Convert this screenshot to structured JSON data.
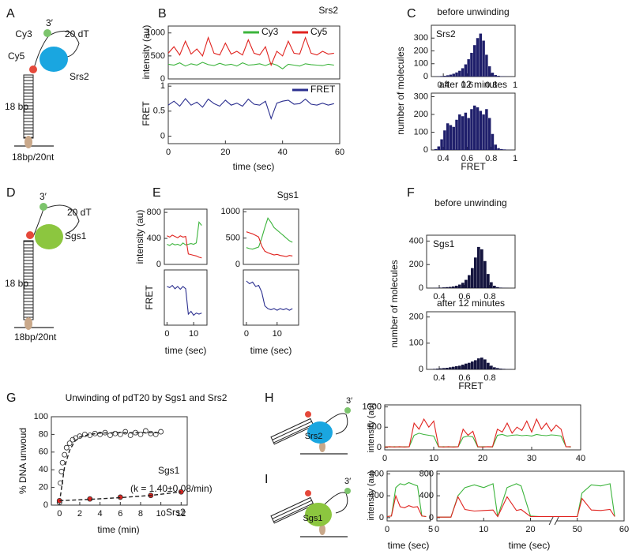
{
  "figure": {
    "panels": [
      "A",
      "B",
      "C",
      "D",
      "E",
      "F",
      "G",
      "H",
      "I"
    ],
    "diagrams": {
      "A": {
        "end": "3′",
        "dye3": "Cy3",
        "tail": "20 dT",
        "dye5": "Cy5",
        "protein": "Srs2",
        "duplex": "18 bp",
        "substrate": "18bp/20nt"
      },
      "D": {
        "end": "3′",
        "tail": "20 dT",
        "protein": "Sgs1",
        "duplex": "18 bp",
        "substrate": "18bp/20nt"
      },
      "H": {
        "end": "3′",
        "protein": "Srs2"
      },
      "I": {
        "end": "3′",
        "protein": "Sgs1"
      }
    }
  },
  "chart_data": [
    {
      "type": "line",
      "title": "Srs2",
      "y_label": "intensity (au)",
      "legend": "upper right",
      "x": [
        0,
        2,
        4,
        6,
        8,
        10,
        12,
        14,
        16,
        18,
        20,
        22,
        24,
        26,
        28,
        30,
        32,
        34,
        36,
        38,
        40,
        42,
        44,
        46,
        48,
        50,
        52,
        54,
        56,
        58
      ],
      "xlim": [
        0,
        60
      ],
      "ylim": [
        0,
        1150
      ],
      "yticks": [
        0,
        500,
        1000
      ],
      "series": [
        {
          "name": "Cy3",
          "color": "#3cb43c",
          "values": [
            320,
            300,
            350,
            280,
            330,
            300,
            360,
            310,
            290,
            340,
            300,
            320,
            280,
            350,
            300,
            310,
            330,
            290,
            340,
            300,
            220,
            320,
            300,
            280,
            330,
            310,
            300,
            290,
            320,
            300
          ]
        },
        {
          "name": "Cy5",
          "color": "#e0231f",
          "values": [
            560,
            700,
            520,
            820,
            540,
            650,
            500,
            900,
            560,
            520,
            780,
            540,
            600,
            520,
            850,
            560,
            520,
            700,
            300,
            600,
            500,
            820,
            560,
            540,
            900,
            560,
            520,
            600,
            540,
            560
          ]
        }
      ]
    },
    {
      "type": "line",
      "y_label": "FRET",
      "x_label": "time (sec)",
      "legend": "upper right",
      "x": [
        0,
        2,
        4,
        6,
        8,
        10,
        12,
        14,
        16,
        18,
        20,
        22,
        24,
        26,
        28,
        30,
        32,
        34,
        36,
        38,
        40,
        42,
        44,
        46,
        48,
        50,
        52,
        54,
        56,
        58
      ],
      "xlim": [
        0,
        60
      ],
      "xticks": [
        0,
        20,
        40,
        60
      ],
      "ylim": [
        -0.15,
        1.05
      ],
      "yticks": [
        0,
        0.5,
        1
      ],
      "series": [
        {
          "name": "FRET",
          "color": "#2b2f8f",
          "values": [
            0.62,
            0.7,
            0.6,
            0.75,
            0.62,
            0.68,
            0.58,
            0.74,
            0.65,
            0.6,
            0.72,
            0.62,
            0.66,
            0.6,
            0.74,
            0.64,
            0.62,
            0.7,
            0.35,
            0.66,
            0.7,
            0.72,
            0.64,
            0.65,
            0.74,
            0.64,
            0.62,
            0.66,
            0.62,
            0.65
          ]
        }
      ]
    },
    {
      "type": "histogram",
      "title": "before unwinding",
      "annotations": [
        "Srs2"
      ],
      "y_label": "number of molecules",
      "color": "#1f1f6b",
      "bins": [
        0.3,
        0.325,
        0.35,
        0.375,
        0.4,
        0.425,
        0.45,
        0.475,
        0.5,
        0.525,
        0.55,
        0.575,
        0.6,
        0.625,
        0.65,
        0.675,
        0.7,
        0.725,
        0.75,
        0.775,
        0.8,
        0.825,
        0.85,
        0.875,
        0.9,
        0.925,
        0.95,
        0.975,
        1
      ],
      "values": [
        0,
        1,
        2,
        4,
        6,
        10,
        15,
        22,
        32,
        45,
        65,
        95,
        135,
        185,
        245,
        300,
        335,
        280,
        170,
        80,
        30,
        12,
        6,
        3,
        2,
        1,
        1,
        0
      ],
      "xlim": [
        0.3,
        1
      ],
      "xticks": [
        0.4,
        0.6,
        0.8,
        1
      ],
      "ylim": [
        0,
        400
      ],
      "yticks": [
        0,
        100,
        200,
        300
      ]
    },
    {
      "type": "histogram",
      "title": "after 12 minutes",
      "x_label": "FRET",
      "color": "#1f1f6b",
      "bins": [
        0.3,
        0.325,
        0.35,
        0.375,
        0.4,
        0.425,
        0.45,
        0.475,
        0.5,
        0.525,
        0.55,
        0.575,
        0.6,
        0.625,
        0.65,
        0.675,
        0.7,
        0.725,
        0.75,
        0.775,
        0.8,
        0.825,
        0.85,
        0.875,
        0.9,
        0.925,
        0.95,
        0.975,
        1
      ],
      "values": [
        0,
        5,
        20,
        60,
        110,
        150,
        140,
        130,
        170,
        200,
        190,
        210,
        180,
        230,
        250,
        240,
        220,
        200,
        230,
        180,
        90,
        30,
        10,
        5,
        3,
        1,
        1,
        0
      ],
      "xlim": [
        0.3,
        1
      ],
      "xticks": [
        0.4,
        0.6,
        0.8,
        1
      ],
      "ylim": [
        0,
        320
      ],
      "yticks": [
        0,
        100,
        200,
        300
      ]
    },
    {
      "type": "line",
      "y_label": "intensity (au)",
      "x": [
        0,
        1,
        2,
        3,
        4,
        5,
        6,
        7,
        8,
        9,
        10,
        11,
        12,
        13
      ],
      "xlim": [
        -1,
        15
      ],
      "ylim": [
        0,
        850
      ],
      "yticks": [
        0,
        400,
        800
      ],
      "series": [
        {
          "color": "#3cb43c",
          "values": [
            310,
            290,
            320,
            300,
            310,
            290,
            330,
            300,
            310,
            320,
            310,
            330,
            650,
            600
          ]
        },
        {
          "color": "#e0231f",
          "values": [
            440,
            420,
            450,
            430,
            410,
            440,
            420,
            430,
            160,
            150,
            140,
            130,
            110,
            100
          ]
        }
      ]
    },
    {
      "type": "line",
      "title": "Sgs1",
      "x": [
        0,
        1,
        2,
        3,
        4,
        5,
        6,
        7,
        8,
        9,
        10,
        11,
        12,
        13,
        14,
        15
      ],
      "xlim": [
        -1,
        17
      ],
      "ylim": [
        0,
        1050
      ],
      "yticks": [
        0,
        500,
        1000
      ],
      "series": [
        {
          "color": "#3cb43c",
          "values": [
            320,
            300,
            290,
            310,
            330,
            500,
            700,
            880,
            800,
            700,
            650,
            600,
            550,
            500,
            450,
            420
          ]
        },
        {
          "color": "#e0231f",
          "values": [
            620,
            600,
            580,
            550,
            520,
            350,
            250,
            220,
            200,
            180,
            190,
            170,
            160,
            150,
            170,
            160
          ]
        }
      ]
    },
    {
      "type": "line",
      "y_label": "FRET",
      "x_label": "time (sec)",
      "x": [
        0,
        1,
        2,
        3,
        4,
        5,
        6,
        7,
        8,
        9,
        10,
        11,
        12,
        13
      ],
      "xlim": [
        -1,
        15
      ],
      "xticks": [
        0,
        10
      ],
      "ylim": [
        0,
        1
      ],
      "series": [
        {
          "color": "#2b2f8f",
          "values": [
            0.7,
            0.68,
            0.72,
            0.66,
            0.7,
            0.65,
            0.7,
            0.66,
            0.2,
            0.25,
            0.18,
            0.22,
            0.2,
            0.22
          ]
        }
      ]
    },
    {
      "type": "line",
      "x_label": "time (sec)",
      "x": [
        0,
        1,
        2,
        3,
        4,
        5,
        6,
        7,
        8,
        9,
        10,
        11,
        12,
        13,
        14,
        15
      ],
      "xlim": [
        -1,
        17
      ],
      "xticks": [
        0,
        10
      ],
      "ylim": [
        0,
        1
      ],
      "series": [
        {
          "color": "#2b2f8f",
          "values": [
            0.8,
            0.75,
            0.78,
            0.7,
            0.72,
            0.6,
            0.35,
            0.3,
            0.28,
            0.3,
            0.27,
            0.3,
            0.28,
            0.3,
            0.27,
            0.3
          ]
        }
      ]
    },
    {
      "type": "histogram",
      "title": "before unwinding",
      "annotations": [
        "Sgs1"
      ],
      "y_label": "number of molecules",
      "color": "#15153f",
      "bins": [
        0.3,
        0.325,
        0.35,
        0.375,
        0.4,
        0.425,
        0.45,
        0.475,
        0.5,
        0.525,
        0.55,
        0.575,
        0.6,
        0.625,
        0.65,
        0.675,
        0.7,
        0.725,
        0.75,
        0.775,
        0.8,
        0.825,
        0.85,
        0.875,
        0.9,
        0.925,
        0.95,
        0.975,
        1
      ],
      "values": [
        0,
        1,
        2,
        3,
        4,
        6,
        8,
        10,
        14,
        20,
        30,
        45,
        70,
        110,
        170,
        260,
        350,
        330,
        230,
        120,
        50,
        20,
        8,
        4,
        2,
        1,
        0,
        0
      ],
      "xlim": [
        0.3,
        1
      ],
      "xticks": [
        0.4,
        0.6,
        0.8
      ],
      "ylim": [
        0,
        450
      ],
      "yticks": [
        0,
        200,
        400
      ]
    },
    {
      "type": "histogram",
      "title": "after 12 minutes",
      "x_label": "FRET",
      "color": "#15153f",
      "bins": [
        0.3,
        0.325,
        0.35,
        0.375,
        0.4,
        0.425,
        0.45,
        0.475,
        0.5,
        0.525,
        0.55,
        0.575,
        0.6,
        0.625,
        0.65,
        0.675,
        0.7,
        0.725,
        0.75,
        0.775,
        0.8,
        0.825,
        0.85,
        0.875,
        0.9,
        0.925,
        0.95,
        0.975,
        1
      ],
      "values": [
        0,
        1,
        2,
        3,
        4,
        5,
        6,
        8,
        10,
        12,
        14,
        18,
        22,
        25,
        30,
        35,
        42,
        45,
        38,
        25,
        14,
        8,
        5,
        3,
        2,
        1,
        1,
        0
      ],
      "xlim": [
        0.3,
        1
      ],
      "xticks": [
        0.4,
        0.6,
        0.8
      ],
      "ylim": [
        0,
        220
      ],
      "yticks": [
        0,
        100,
        200
      ]
    },
    {
      "type": "scatter",
      "title": "Unwinding of pdT20 by Sgs1 and Srs2",
      "y_label": "% DNA unwoud",
      "x_label": "time (min)",
      "annotations": [
        "Sgs1",
        "(k = 1.40±0.08/min)",
        "Srs2"
      ],
      "xlim": [
        -0.8,
        12.6
      ],
      "xticks": [
        0,
        2,
        4,
        6,
        8,
        10,
        12
      ],
      "ylim": [
        0,
        100
      ],
      "yticks": [
        0,
        20,
        40,
        60,
        80,
        100
      ],
      "series": [
        {
          "style": "open-circle",
          "color": "#222222",
          "x": [
            0,
            0.1,
            0.2,
            0.3,
            0.5,
            0.7,
            1,
            1.3,
            1.6,
            2,
            2.5,
            3,
            3.5,
            4,
            4.5,
            5,
            5.5,
            6,
            6.5,
            7,
            7.5,
            8,
            8.5,
            9,
            9.5,
            10
          ],
          "values": [
            3,
            25,
            38,
            48,
            57,
            65,
            70,
            74,
            76,
            78,
            80,
            79,
            81,
            80,
            82,
            79,
            81,
            80,
            83,
            79,
            82,
            80,
            84,
            81,
            80,
            83
          ]
        },
        {
          "style": "dashed",
          "color": "#222222",
          "x": [
            0,
            0.5,
            1,
            1.5,
            2,
            3,
            4,
            6,
            8,
            10
          ],
          "values": [
            3,
            43,
            62,
            72,
            77,
            80,
            81.5,
            82,
            82,
            82
          ]
        },
        {
          "style": "dot",
          "color": "#e0231f",
          "x": [
            0,
            3,
            6,
            9,
            12
          ],
          "values": [
            5,
            7,
            9,
            11,
            15
          ]
        },
        {
          "style": "dashed",
          "color": "#222222",
          "x": [
            0,
            3,
            6,
            9,
            12
          ],
          "values": [
            5,
            6.5,
            8.5,
            11,
            15
          ]
        }
      ]
    },
    {
      "type": "line",
      "y_label": "intensity (au)",
      "x": [
        0,
        1,
        2,
        3,
        4,
        5,
        6,
        7,
        8,
        9,
        10,
        11,
        12,
        13,
        14,
        15,
        16,
        17,
        18,
        19,
        20,
        21,
        22,
        23,
        24,
        25,
        26,
        27,
        28,
        29,
        30,
        31,
        32,
        33,
        34,
        35,
        36,
        37,
        38
      ],
      "xlim": [
        0,
        40
      ],
      "xticks": [
        0,
        10,
        20,
        30,
        40
      ],
      "ylim": [
        -60,
        1050
      ],
      "yticks": [
        0,
        500,
        1000
      ],
      "series": [
        {
          "color": "#3cb43c",
          "values": [
            20,
            10,
            20,
            10,
            15,
            20,
            300,
            350,
            320,
            300,
            280,
            10,
            20,
            10,
            15,
            20,
            250,
            280,
            260,
            10,
            20,
            15,
            10,
            300,
            320,
            280,
            300,
            310,
            290,
            300,
            280,
            320,
            300,
            290,
            310,
            300,
            280,
            20,
            10
          ]
        },
        {
          "color": "#e0231f",
          "values": [
            10,
            20,
            10,
            20,
            10,
            15,
            600,
            450,
            700,
            500,
            650,
            20,
            10,
            20,
            10,
            15,
            450,
            300,
            400,
            20,
            10,
            20,
            15,
            450,
            380,
            600,
            350,
            500,
            420,
            650,
            380,
            700,
            450,
            600,
            400,
            550,
            450,
            15,
            20
          ]
        }
      ]
    },
    {
      "type": "line",
      "y_label": "intensity (au)",
      "x_label": "time (sec)",
      "x": [
        0,
        0.5,
        1,
        1.5,
        2,
        2.5,
        3,
        3.5,
        4,
        4.5
      ],
      "xlim": [
        0,
        5
      ],
      "xticks": [
        0,
        5
      ],
      "ylim": [
        -60,
        850
      ],
      "yticks": [
        0,
        400,
        800
      ],
      "series": [
        {
          "color": "#3cb43c",
          "values": [
            20,
            30,
            550,
            620,
            600,
            640,
            610,
            580,
            30,
            20
          ]
        },
        {
          "color": "#e0231f",
          "values": [
            20,
            30,
            400,
            200,
            180,
            220,
            190,
            200,
            30,
            20
          ]
        }
      ]
    },
    {
      "type": "line",
      "x_label": "time (sec)",
      "axis_break": [
        25,
        45
      ],
      "x": [
        0,
        3,
        4.5,
        6,
        8,
        10,
        12,
        13,
        15,
        17,
        18,
        20,
        22,
        48,
        50,
        51,
        53,
        55,
        57,
        58
      ],
      "xlim": [
        0,
        60
      ],
      "xticks": [
        0,
        10,
        20,
        50,
        60
      ],
      "ylim": [
        -60,
        850
      ],
      "yticks": [
        0,
        400,
        800
      ],
      "series": [
        {
          "color": "#3cb43c",
          "values": [
            10,
            10,
            400,
            550,
            600,
            550,
            620,
            20,
            550,
            620,
            580,
            30,
            20,
            20,
            20,
            450,
            600,
            580,
            620,
            20
          ]
        },
        {
          "color": "#e0231f",
          "values": [
            10,
            10,
            380,
            150,
            120,
            130,
            140,
            20,
            380,
            130,
            150,
            20,
            20,
            20,
            20,
            350,
            140,
            130,
            150,
            20
          ]
        }
      ]
    }
  ]
}
